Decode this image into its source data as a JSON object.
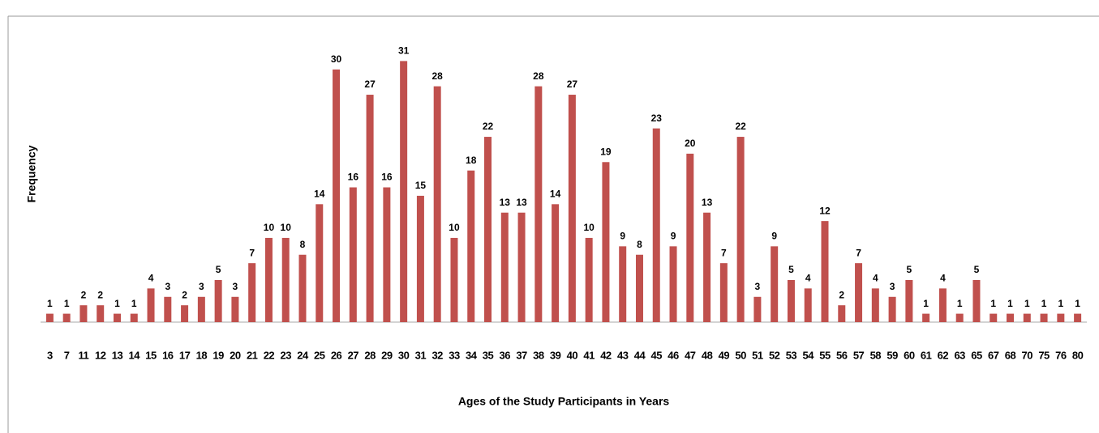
{
  "chart_data": {
    "type": "bar",
    "xlabel": "Ages of the Study Participants in Years",
    "ylabel": "Frequency",
    "categories": [
      "3",
      "7",
      "11",
      "12",
      "13",
      "14",
      "15",
      "16",
      "17",
      "18",
      "19",
      "20",
      "21",
      "22",
      "23",
      "24",
      "25",
      "26",
      "27",
      "28",
      "29",
      "30",
      "31",
      "32",
      "33",
      "34",
      "35",
      "36",
      "37",
      "38",
      "39",
      "40",
      "41",
      "42",
      "43",
      "44",
      "45",
      "46",
      "47",
      "48",
      "49",
      "50",
      "51",
      "52",
      "53",
      "54",
      "55",
      "56",
      "57",
      "58",
      "59",
      "60",
      "61",
      "62",
      "63",
      "65",
      "67",
      "68",
      "70",
      "75",
      "76",
      "80"
    ],
    "values": [
      1,
      1,
      2,
      2,
      1,
      1,
      4,
      3,
      2,
      3,
      5,
      3,
      7,
      10,
      10,
      8,
      14,
      30,
      16,
      27,
      16,
      31,
      15,
      28,
      10,
      18,
      22,
      13,
      13,
      28,
      14,
      27,
      10,
      19,
      9,
      8,
      23,
      9,
      20,
      13,
      7,
      22,
      3,
      9,
      5,
      4,
      12,
      2,
      7,
      4,
      3,
      5,
      1,
      4,
      1,
      5,
      1,
      1,
      1,
      1,
      1,
      1
    ],
    "color": "#c0504d",
    "ylim": [
      0,
      32
    ]
  }
}
